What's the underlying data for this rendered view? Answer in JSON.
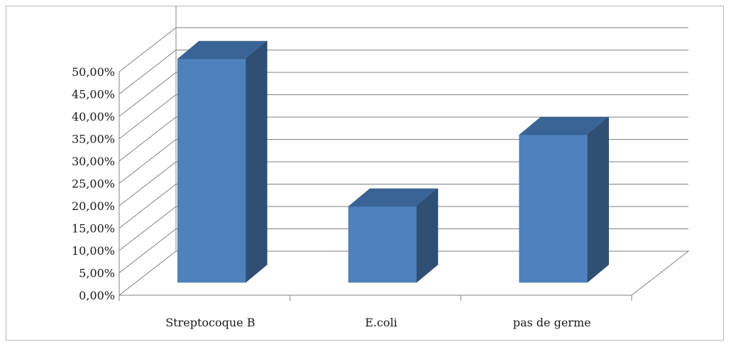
{
  "chart_data": {
    "type": "bar",
    "categories": [
      "Streptocoque B",
      "E.coli",
      "pas de germe"
    ],
    "values": [
      0.5,
      0.17,
      0.33
    ],
    "ylim": [
      0,
      0.5
    ],
    "yticks": [
      "0,00%",
      "5,00%",
      "10,00%",
      "15,00%",
      "20,00%",
      "25,00%",
      "30,00%",
      "35,00%",
      "40,00%",
      "45,00%",
      "50,00%"
    ],
    "grid": true,
    "legend": "none",
    "colors": {
      "front": "#4f81bd",
      "side": "#2f5074",
      "top": "#3a6496",
      "grid": "#808080"
    }
  }
}
